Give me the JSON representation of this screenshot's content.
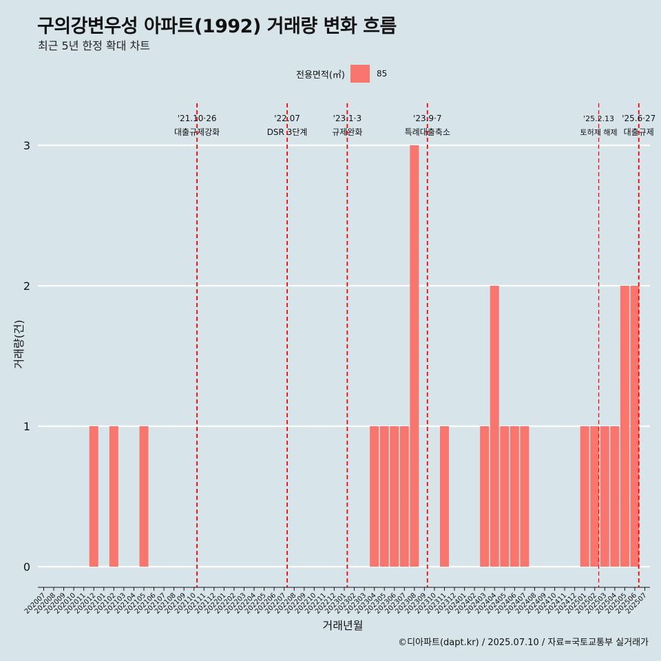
{
  "header": {
    "title": "구의강변우성 아파트(1992) 거래량 변화 흐름",
    "subtitle": "최근 5년 한정 확대 차트"
  },
  "legend": {
    "title": "전용면적(㎡)",
    "items": [
      {
        "label": "85",
        "color": "#f8766d"
      }
    ]
  },
  "footer": {
    "credit": "©디아파트(dapt.kr) / 2025.07.10 / 자료=국토교통부 실거래가"
  },
  "chart_data": {
    "type": "bar",
    "xlabel": "거래년월",
    "ylabel": "거래량(건)",
    "ylim": [
      0,
      3
    ],
    "y_ticks": [
      0,
      1,
      2,
      3
    ],
    "grid": true,
    "legend_position": "top",
    "categories": [
      "202007",
      "202008",
      "202009",
      "202010",
      "202011",
      "202012",
      "202101",
      "202102",
      "202103",
      "202104",
      "202105",
      "202106",
      "202107",
      "202108",
      "202109",
      "202110",
      "202111",
      "202112",
      "202201",
      "202202",
      "202203",
      "202204",
      "202205",
      "202206",
      "202207",
      "202208",
      "202209",
      "202210",
      "202211",
      "202212",
      "202301",
      "202302",
      "202303",
      "202304",
      "202305",
      "202306",
      "202307",
      "202308",
      "202309",
      "202310",
      "202311",
      "202312",
      "202401",
      "202402",
      "202403",
      "202404",
      "202405",
      "202406",
      "202407",
      "202408",
      "202409",
      "202410",
      "202411",
      "202412",
      "202501",
      "202502",
      "202503",
      "202504",
      "202505",
      "202506",
      "202507"
    ],
    "series": [
      {
        "name": "85",
        "color": "#f8766d",
        "values": [
          0,
          0,
          0,
          0,
          0,
          1,
          0,
          1,
          0,
          0,
          1,
          0,
          0,
          0,
          0,
          0,
          0,
          0,
          0,
          0,
          0,
          0,
          0,
          0,
          0,
          0,
          0,
          0,
          0,
          0,
          0,
          0,
          0,
          1,
          1,
          1,
          1,
          3,
          0,
          0,
          1,
          0,
          0,
          0,
          1,
          2,
          1,
          1,
          1,
          0,
          0,
          0,
          0,
          0,
          1,
          1,
          1,
          1,
          2,
          2,
          0
        ]
      }
    ],
    "events": [
      {
        "position": 15.3,
        "date": "'21.10·26",
        "label": "대출규제강화",
        "small": false
      },
      {
        "position": 24.3,
        "date": "'22.07",
        "label": "DSR 3단계",
        "small": false
      },
      {
        "position": 30.3,
        "date": "'23.1·3",
        "label": "규제완화",
        "small": false
      },
      {
        "position": 38.3,
        "date": "'23.9·7",
        "label": "특례대출축소",
        "small": false
      },
      {
        "position": 55.4,
        "date": "'25.2.13",
        "label": "토허제 해제",
        "small": true
      },
      {
        "position": 59.4,
        "date": "'25.6·27",
        "label": "대출규제",
        "small": false
      }
    ],
    "event_line_color": "#ff0000"
  }
}
